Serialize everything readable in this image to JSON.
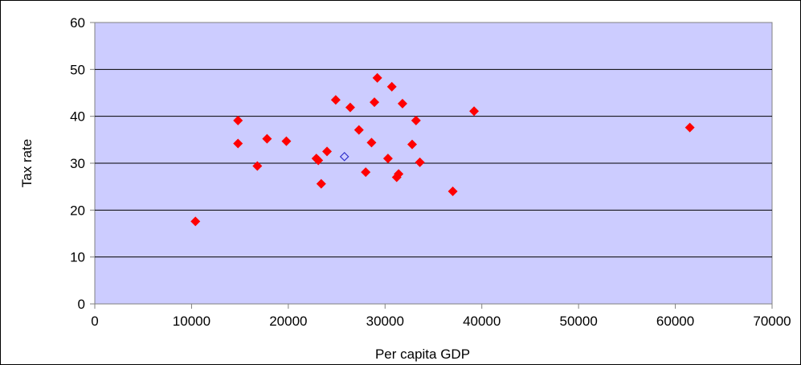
{
  "chart_data": {
    "type": "scatter",
    "xlabel": "Per capita GDP",
    "ylabel": "Tax rate",
    "xlim": [
      0,
      70000
    ],
    "ylim": [
      0,
      60
    ],
    "xticks": [
      0,
      10000,
      20000,
      30000,
      40000,
      50000,
      60000,
      70000
    ],
    "yticks": [
      0,
      10,
      20,
      30,
      40,
      50,
      60
    ],
    "grid": "horizontal",
    "plot_background": "#ccccff",
    "series": [
      {
        "marker": "filled-diamond",
        "color": "#ff0000",
        "points": [
          [
            10400,
            17.6
          ],
          [
            14800,
            39.1
          ],
          [
            14800,
            34.2
          ],
          [
            16800,
            29.4
          ],
          [
            17800,
            35.2
          ],
          [
            19800,
            34.7
          ],
          [
            22900,
            31.0
          ],
          [
            23100,
            30.6
          ],
          [
            23400,
            25.6
          ],
          [
            24000,
            32.5
          ],
          [
            24900,
            43.5
          ],
          [
            26400,
            41.9
          ],
          [
            27300,
            37.1
          ],
          [
            28000,
            28.1
          ],
          [
            28600,
            34.4
          ],
          [
            28900,
            43.0
          ],
          [
            29200,
            48.2
          ],
          [
            30300,
            31.0
          ],
          [
            30700,
            46.3
          ],
          [
            31200,
            27.0
          ],
          [
            31400,
            27.7
          ],
          [
            31800,
            42.7
          ],
          [
            32800,
            34.0
          ],
          [
            33200,
            39.1
          ],
          [
            33600,
            30.2
          ],
          [
            37000,
            24.0
          ],
          [
            39200,
            41.1
          ],
          [
            61500,
            37.6
          ]
        ]
      },
      {
        "marker": "hollow-diamond",
        "color": "#3333cc",
        "points": [
          [
            25800,
            31.4
          ]
        ]
      }
    ]
  }
}
